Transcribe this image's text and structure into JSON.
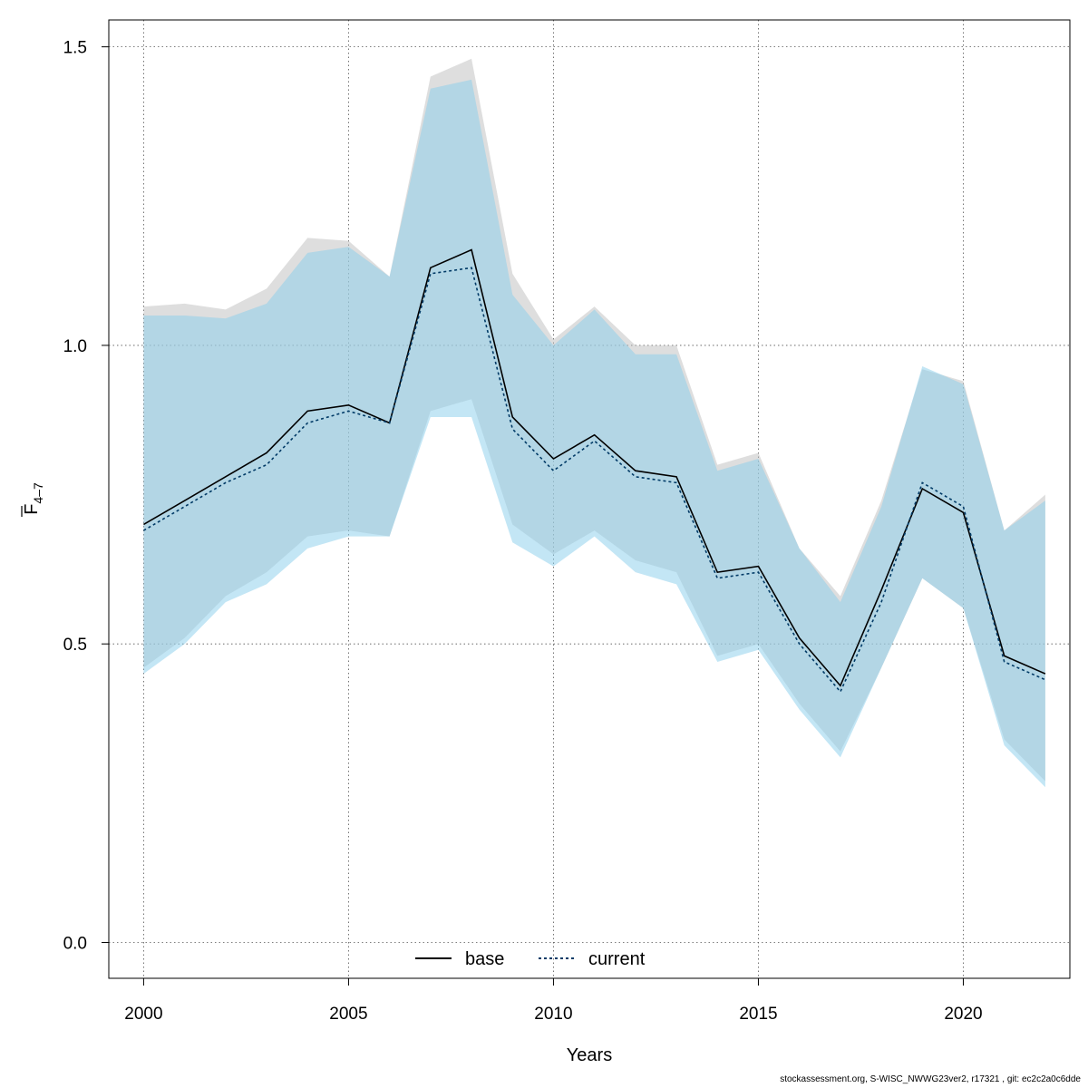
{
  "chart_data": {
    "type": "area",
    "xlabel": "Years",
    "ylabel": "F",
    "ylabel_sub": "4–7",
    "xlim": [
      1999.15,
      2022.6
    ],
    "ylim": [
      -0.06,
      1.545
    ],
    "x_ticks": [
      2000,
      2005,
      2010,
      2015,
      2020
    ],
    "y_ticks": [
      0.0,
      0.5,
      1.0,
      1.5
    ],
    "y_tick_labels": [
      "0.0",
      "0.5",
      "1.0",
      "1.5"
    ],
    "grid": true,
    "legend_position": "bottom-center",
    "x": [
      2000,
      2001,
      2002,
      2003,
      2004,
      2005,
      2006,
      2007,
      2008,
      2009,
      2010,
      2011,
      2012,
      2013,
      2014,
      2015,
      2016,
      2017,
      2018,
      2019,
      2020,
      2021,
      2022
    ],
    "series": [
      {
        "name": "base",
        "line_style": "solid",
        "line_color": "#000000",
        "band_color": "#bebebe",
        "values": [
          0.7,
          0.74,
          0.78,
          0.82,
          0.89,
          0.9,
          0.87,
          1.13,
          1.16,
          0.88,
          0.81,
          0.85,
          0.79,
          0.78,
          0.62,
          0.63,
          0.51,
          0.43,
          0.59,
          0.76,
          0.72,
          0.48,
          0.45
        ],
        "lower": [
          0.46,
          0.51,
          0.58,
          0.62,
          0.68,
          0.69,
          0.68,
          0.89,
          0.91,
          0.7,
          0.65,
          0.69,
          0.64,
          0.62,
          0.48,
          0.5,
          0.4,
          0.32,
          0.46,
          0.61,
          0.56,
          0.34,
          0.27
        ],
        "upper": [
          1.065,
          1.07,
          1.06,
          1.095,
          1.18,
          1.175,
          1.115,
          1.45,
          1.48,
          1.12,
          1.01,
          1.065,
          1.0,
          1.0,
          0.8,
          0.82,
          0.66,
          0.58,
          0.74,
          0.96,
          0.94,
          0.69,
          0.75
        ]
      },
      {
        "name": "current",
        "line_style": "dotted",
        "line_color": "#003a66",
        "band_color": "#87ceeb",
        "values": [
          0.69,
          0.73,
          0.77,
          0.8,
          0.87,
          0.89,
          0.87,
          1.12,
          1.13,
          0.86,
          0.79,
          0.84,
          0.78,
          0.77,
          0.61,
          0.62,
          0.5,
          0.42,
          0.57,
          0.77,
          0.73,
          0.47,
          0.44
        ],
        "lower": [
          0.45,
          0.5,
          0.57,
          0.6,
          0.66,
          0.68,
          0.68,
          0.88,
          0.88,
          0.67,
          0.63,
          0.68,
          0.62,
          0.6,
          0.47,
          0.49,
          0.39,
          0.31,
          0.46,
          0.61,
          0.56,
          0.33,
          0.26
        ],
        "upper": [
          1.05,
          1.05,
          1.045,
          1.07,
          1.155,
          1.165,
          1.115,
          1.43,
          1.445,
          1.085,
          1.0,
          1.06,
          0.985,
          0.985,
          0.79,
          0.81,
          0.66,
          0.57,
          0.73,
          0.965,
          0.935,
          0.69,
          0.74
        ]
      }
    ]
  },
  "footer": "stockassessment.org, S-WISC_NWWG23ver2, r17321 , git: ec2c2a0c6dde"
}
